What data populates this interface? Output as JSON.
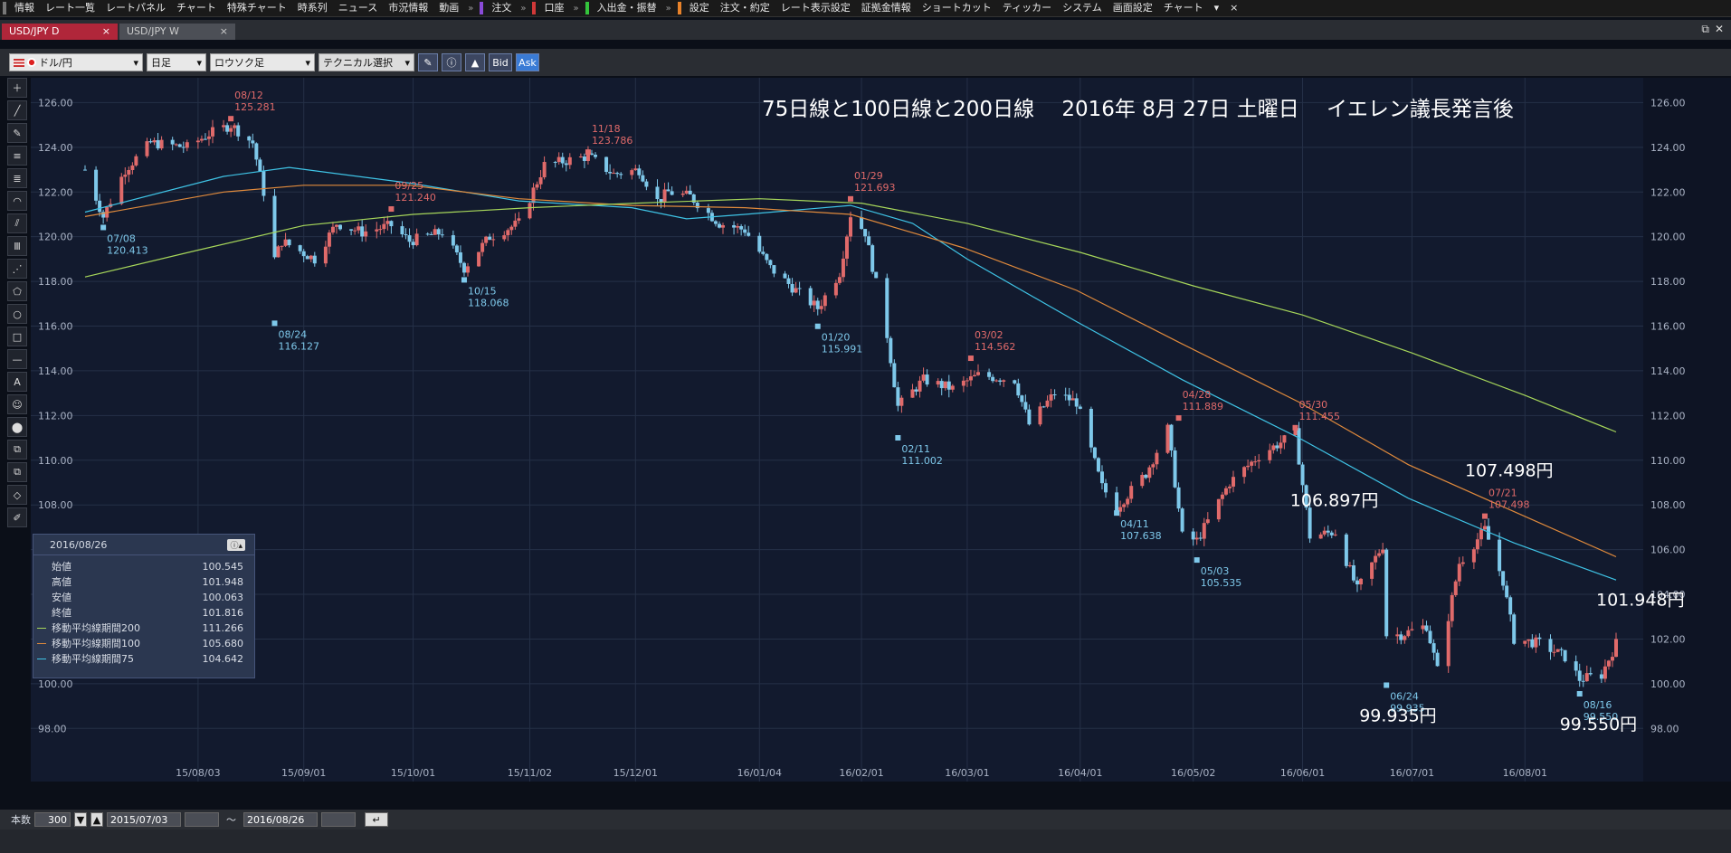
{
  "menubar": {
    "groups": [
      {
        "color": "gray",
        "items": [
          "情報",
          "レート一覧",
          "レートパネル",
          "チャート",
          "特殊チャート",
          "時系列",
          "ニュース",
          "市況情報",
          "動画"
        ]
      },
      {
        "color": "purple",
        "items": [
          "注文"
        ]
      },
      {
        "color": "red",
        "items": [
          "口座"
        ]
      },
      {
        "color": "green",
        "items": [
          "入出金・振替"
        ]
      },
      {
        "color": "orange",
        "items": [
          "設定",
          "注文・約定",
          "レート表示設定",
          "証拠金情報",
          "ショートカット",
          "ティッカー",
          "システム",
          "画面設定",
          "チャート"
        ]
      }
    ],
    "more": "▾",
    "close": "×"
  },
  "tabs": [
    {
      "label": "USD/JPY D",
      "close": "×"
    },
    {
      "label": "USD/JPY W",
      "close": "×"
    }
  ],
  "window_controls": {
    "restore": "⧉",
    "close": "✕"
  },
  "toolbar": {
    "pair": "ドル/円",
    "period": "日足",
    "chart_type": "ロウソク足",
    "technical": "テクニカル選択",
    "bid": "Bid",
    "ask": "Ask"
  },
  "left_tools": [
    "＋",
    "╱",
    "✎",
    "≡",
    "≣",
    "◠",
    "⫽",
    "Ⅲ",
    "⋰",
    "⬠",
    "○",
    "□",
    "—",
    "A",
    "☺",
    "⬤",
    "⧉",
    "⧉",
    "◇",
    "✐"
  ],
  "colors": {
    "background": "#121a2e",
    "grid": "#253047",
    "up": "#e06a6a",
    "down": "#7ec8ea",
    "ma75": "#3fc4e6",
    "ma100": "#e08a3c",
    "ma200": "#a6d65a",
    "white": "#ffffff"
  },
  "annotation": {
    "title": "75日線と100日線と200日線　 2016年 8月 27日 土曜日　 イエレン議長発言後"
  },
  "big_labels": [
    {
      "text": "106.897円",
      "x": "2016-06-10",
      "y": 106.897
    },
    {
      "text": "107.498円",
      "x": "2016-07-21",
      "y": 107.498
    },
    {
      "text": "99.935円",
      "x": "2016-06-24",
      "y": 99.935
    },
    {
      "text": "101.948円",
      "x": "2016-08-26",
      "y": 101.948
    },
    {
      "text": "99.550円",
      "x": "2016-08-16",
      "y": 99.55
    }
  ],
  "info_panel": {
    "date": "2016/08/26",
    "rows": [
      {
        "label": "始値",
        "value": "100.545"
      },
      {
        "label": "高値",
        "value": "101.948"
      },
      {
        "label": "安値",
        "value": "100.063"
      },
      {
        "label": "終値",
        "value": "101.816"
      },
      {
        "label": "移動平均線期間200",
        "value": "111.266",
        "swatch": "#a6d65a"
      },
      {
        "label": "移動平均線期間100",
        "value": "105.680",
        "swatch": "#e08a3c"
      },
      {
        "label": "移動平均線期間75",
        "value": "104.642",
        "swatch": "#3fc4e6"
      }
    ]
  },
  "statusbar": {
    "count_label": "本数",
    "count": "300",
    "from": "2015/07/03",
    "tilde": "～",
    "to": "2016/08/26"
  },
  "chart_data": {
    "type": "candlestick",
    "title": "75日線と100日線と200日線　 2016年 8月 27日 土曜日　 イエレン議長発言後",
    "x_range": [
      "2015-07-03",
      "2016-08-26"
    ],
    "ylim": [
      97,
      128
    ],
    "yticks": [
      98,
      100,
      102,
      104,
      106,
      108,
      110,
      112,
      114,
      116,
      118,
      120,
      122,
      124,
      126,
      128
    ],
    "xticks": [
      [
        "2015-08-03",
        "15/08/03"
      ],
      [
        "2015-09-01",
        "15/09/01"
      ],
      [
        "2015-10-01",
        "15/10/01"
      ],
      [
        "2015-11-02",
        "15/11/02"
      ],
      [
        "2015-12-01",
        "15/12/01"
      ],
      [
        "2016-01-04",
        "16/01/04"
      ],
      [
        "2016-02-01",
        "16/02/01"
      ],
      [
        "2016-03-01",
        "16/03/01"
      ],
      [
        "2016-04-01",
        "16/04/01"
      ],
      [
        "2016-05-02",
        "16/05/02"
      ],
      [
        "2016-06-01",
        "16/06/01"
      ],
      [
        "2016-07-01",
        "16/07/01"
      ],
      [
        "2016-08-01",
        "16/08/01"
      ]
    ],
    "price_path": [
      [
        "2015-07-03",
        123.0
      ],
      [
        "2015-07-08",
        120.9
      ],
      [
        "2015-07-14",
        123.0
      ],
      [
        "2015-07-21",
        124.2
      ],
      [
        "2015-07-31",
        124.0
      ],
      [
        "2015-08-06",
        124.6
      ],
      [
        "2015-08-12",
        125.0
      ],
      [
        "2015-08-18",
        124.2
      ],
      [
        "2015-08-21",
        122.0
      ],
      [
        "2015-08-24",
        119.0
      ],
      [
        "2015-08-26",
        119.8
      ],
      [
        "2015-09-04",
        119.0
      ],
      [
        "2015-09-10",
        120.6
      ],
      [
        "2015-09-17",
        120.2
      ],
      [
        "2015-09-25",
        120.5
      ],
      [
        "2015-09-30",
        119.8
      ],
      [
        "2015-10-09",
        120.2
      ],
      [
        "2015-10-15",
        118.6
      ],
      [
        "2015-10-22",
        120.0
      ],
      [
        "2015-10-30",
        120.6
      ],
      [
        "2015-11-06",
        123.2
      ],
      [
        "2015-11-18",
        123.6
      ],
      [
        "2015-11-25",
        122.8
      ],
      [
        "2015-12-02",
        123.0
      ],
      [
        "2015-12-07",
        121.6
      ],
      [
        "2015-12-10",
        122.0
      ],
      [
        "2015-12-16",
        121.8
      ],
      [
        "2015-12-24",
        120.6
      ],
      [
        "2015-12-31",
        120.3
      ],
      [
        "2016-01-07",
        118.6
      ],
      [
        "2016-01-14",
        117.6
      ],
      [
        "2016-01-20",
        116.8
      ],
      [
        "2016-01-26",
        118.4
      ],
      [
        "2016-01-29",
        121.0
      ],
      [
        "2016-02-02",
        120.2
      ],
      [
        "2016-02-08",
        115.6
      ],
      [
        "2016-02-11",
        112.4
      ],
      [
        "2016-02-18",
        113.6
      ],
      [
        "2016-02-26",
        113.2
      ],
      [
        "2016-03-04",
        113.8
      ],
      [
        "2016-03-14",
        113.6
      ],
      [
        "2016-03-18",
        111.6
      ],
      [
        "2016-03-25",
        113.0
      ],
      [
        "2016-03-31",
        112.6
      ],
      [
        "2016-04-07",
        108.8
      ],
      [
        "2016-04-11",
        107.9
      ],
      [
        "2016-04-19",
        109.4
      ],
      [
        "2016-04-25",
        111.4
      ],
      [
        "2016-04-29",
        106.6
      ],
      [
        "2016-05-03",
        106.4
      ],
      [
        "2016-05-12",
        109.0
      ],
      [
        "2016-05-20",
        110.2
      ],
      [
        "2016-05-30",
        111.2
      ],
      [
        "2016-06-03",
        106.6
      ],
      [
        "2016-06-10",
        106.8
      ],
      [
        "2016-06-16",
        104.2
      ],
      [
        "2016-06-23",
        106.2
      ],
      [
        "2016-06-24",
        102.2
      ],
      [
        "2016-06-28",
        102.2
      ],
      [
        "2016-07-05",
        102.6
      ],
      [
        "2016-07-08",
        100.6
      ],
      [
        "2016-07-14",
        105.4
      ],
      [
        "2016-07-21",
        106.9
      ],
      [
        "2016-07-26",
        104.6
      ],
      [
        "2016-07-29",
        102.0
      ],
      [
        "2016-08-05",
        101.8
      ],
      [
        "2016-08-12",
        101.2
      ],
      [
        "2016-08-16",
        100.2
      ],
      [
        "2016-08-22",
        100.4
      ],
      [
        "2016-08-26",
        101.8
      ]
    ],
    "extremes": [
      {
        "type": "high",
        "date": "2015-08-12",
        "label": "08/12",
        "value": "125.281"
      },
      {
        "type": "low",
        "date": "2015-07-08",
        "label": "07/08",
        "value": "120.413"
      },
      {
        "type": "low",
        "date": "2015-08-24",
        "label": "08/24",
        "value": "116.127"
      },
      {
        "type": "high",
        "date": "2015-09-25",
        "label": "09/25",
        "value": "121.240"
      },
      {
        "type": "low",
        "date": "2015-10-15",
        "label": "10/15",
        "value": "118.068"
      },
      {
        "type": "high",
        "date": "2015-11-18",
        "label": "11/18",
        "value": "123.786"
      },
      {
        "type": "low",
        "date": "2016-01-20",
        "label": "01/20",
        "value": "115.991"
      },
      {
        "type": "high",
        "date": "2016-01-29",
        "label": "01/29",
        "value": "121.693"
      },
      {
        "type": "low",
        "date": "2016-02-11",
        "label": "02/11",
        "value": "111.002"
      },
      {
        "type": "high",
        "date": "2016-03-02",
        "label": "03/02",
        "value": "114.562"
      },
      {
        "type": "low",
        "date": "2016-04-11",
        "label": "04/11",
        "value": "107.638"
      },
      {
        "type": "high",
        "date": "2016-04-28",
        "label": "04/28",
        "value": "111.889"
      },
      {
        "type": "low",
        "date": "2016-05-03",
        "label": "05/03",
        "value": "105.535"
      },
      {
        "type": "high",
        "date": "2016-05-30",
        "label": "05/30",
        "value": "111.455"
      },
      {
        "type": "low",
        "date": "2016-06-24",
        "label": "06/24",
        "value": "99.935"
      },
      {
        "type": "high",
        "date": "2016-07-21",
        "label": "07/21",
        "value": "107.498"
      },
      {
        "type": "low",
        "date": "2016-08-16",
        "label": "08/16",
        "value": "99.550"
      }
    ],
    "series": [
      {
        "name": "移動平均線期間75",
        "color": "#3fc4e6",
        "points": [
          [
            "2015-07-03",
            121.1
          ],
          [
            "2015-08-10",
            122.7
          ],
          [
            "2015-08-28",
            123.1
          ],
          [
            "2015-09-30",
            122.4
          ],
          [
            "2015-10-30",
            121.6
          ],
          [
            "2015-11-30",
            121.3
          ],
          [
            "2015-12-15",
            120.8
          ],
          [
            "2015-12-31",
            121.0
          ],
          [
            "2016-01-29",
            121.4
          ],
          [
            "2016-02-15",
            120.6
          ],
          [
            "2016-03-01",
            119.0
          ],
          [
            "2016-03-31",
            116.2
          ],
          [
            "2016-04-29",
            113.6
          ],
          [
            "2016-05-31",
            111.0
          ],
          [
            "2016-06-30",
            108.3
          ],
          [
            "2016-07-29",
            106.3
          ],
          [
            "2016-08-26",
            104.642
          ]
        ]
      },
      {
        "name": "移動平均線期間100",
        "color": "#e08a3c",
        "points": [
          [
            "2015-07-03",
            120.9
          ],
          [
            "2015-08-10",
            122.0
          ],
          [
            "2015-09-01",
            122.3
          ],
          [
            "2015-09-30",
            122.3
          ],
          [
            "2015-10-30",
            121.7
          ],
          [
            "2015-11-30",
            121.4
          ],
          [
            "2015-12-31",
            121.3
          ],
          [
            "2016-01-29",
            121.0
          ],
          [
            "2016-02-29",
            119.5
          ],
          [
            "2016-03-31",
            117.6
          ],
          [
            "2016-04-29",
            115.2
          ],
          [
            "2016-05-31",
            112.6
          ],
          [
            "2016-06-30",
            109.8
          ],
          [
            "2016-07-29",
            107.7
          ],
          [
            "2016-08-26",
            105.68
          ]
        ]
      },
      {
        "name": "移動平均線期間200",
        "color": "#a6d65a",
        "points": [
          [
            "2015-07-03",
            118.2
          ],
          [
            "2015-08-03",
            119.4
          ],
          [
            "2015-09-01",
            120.5
          ],
          [
            "2015-10-01",
            121.0
          ],
          [
            "2015-11-02",
            121.3
          ],
          [
            "2015-12-01",
            121.5
          ],
          [
            "2016-01-04",
            121.7
          ],
          [
            "2016-02-01",
            121.5
          ],
          [
            "2016-03-01",
            120.6
          ],
          [
            "2016-04-01",
            119.3
          ],
          [
            "2016-05-02",
            117.8
          ],
          [
            "2016-06-01",
            116.5
          ],
          [
            "2016-07-01",
            114.8
          ],
          [
            "2016-08-01",
            112.9
          ],
          [
            "2016-08-26",
            111.266
          ]
        ]
      }
    ]
  }
}
